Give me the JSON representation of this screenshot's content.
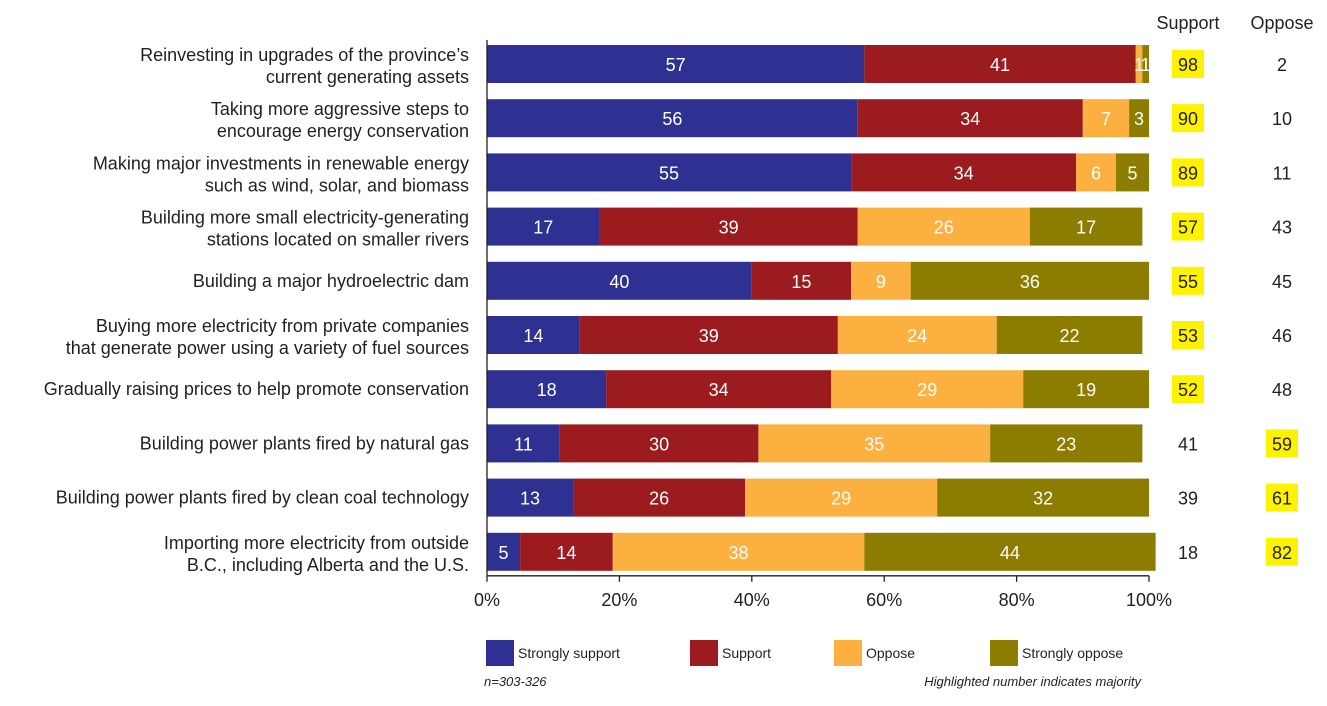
{
  "chart_data": {
    "type": "bar",
    "orientation": "horizontal",
    "stacked": true,
    "categories": [
      [
        "Reinvesting in upgrades of the province’s",
        "current generating assets"
      ],
      [
        "Taking more aggressive steps to",
        "encourage energy conservation"
      ],
      [
        "Making major investments in renewable energy",
        "such as wind, solar, and biomass"
      ],
      [
        "Building more small electricity-generating",
        "stations located on smaller rivers"
      ],
      [
        "Building a major hydroelectric dam"
      ],
      [
        "Buying more electricity from private companies",
        "that generate power using a variety of fuel sources"
      ],
      [
        "Gradually raising prices to help promote conservation"
      ],
      [
        "Building power plants fired by natural gas"
      ],
      [
        "Building power plants fired by clean coal technology"
      ],
      [
        "Importing more electricity from outside",
        "B.C., including Alberta and the U.S."
      ]
    ],
    "series": [
      {
        "name": "Strongly support",
        "color": "#2e3192",
        "values": [
          57,
          56,
          55,
          17,
          40,
          14,
          18,
          11,
          13,
          5
        ]
      },
      {
        "name": "Support",
        "color": "#9b1b1f",
        "values": [
          41,
          34,
          34,
          39,
          15,
          39,
          34,
          30,
          26,
          14
        ]
      },
      {
        "name": "Oppose",
        "color": "#fbb040",
        "values": [
          1,
          7,
          6,
          26,
          9,
          24,
          29,
          35,
          29,
          38
        ]
      },
      {
        "name": "Strongly oppose",
        "color": "#8c7d00",
        "values": [
          1,
          3,
          5,
          17,
          36,
          22,
          19,
          23,
          32,
          44
        ]
      }
    ],
    "segment_labels": [
      [
        "57",
        "41",
        "1",
        "1"
      ],
      [
        "56",
        "34",
        "7",
        "3"
      ],
      [
        "55",
        "34",
        "6",
        "5"
      ],
      [
        "17",
        "39",
        "26",
        "17"
      ],
      [
        "40",
        "15",
        "9",
        "36"
      ],
      [
        "14",
        "39",
        "24",
        "22"
      ],
      [
        "18",
        "34",
        "29",
        "19"
      ],
      [
        "11",
        "30",
        "35",
        "23"
      ],
      [
        "13",
        "26",
        "29",
        "32"
      ],
      [
        "5",
        "14",
        "38",
        "44"
      ]
    ],
    "summary_columns": [
      {
        "label": "Support",
        "values": [
          98,
          90,
          89,
          57,
          55,
          53,
          52,
          41,
          39,
          18
        ],
        "highlight": [
          true,
          true,
          true,
          true,
          true,
          true,
          true,
          false,
          false,
          false
        ]
      },
      {
        "label": "Oppose",
        "values": [
          2,
          10,
          11,
          43,
          45,
          46,
          48,
          59,
          61,
          82
        ],
        "highlight": [
          false,
          false,
          false,
          false,
          false,
          false,
          false,
          true,
          true,
          true
        ]
      }
    ],
    "highlight_color": "#fff200",
    "xlim": [
      0,
      100
    ],
    "xticks": [
      "0%",
      "20%",
      "40%",
      "60%",
      "80%",
      "100%"
    ],
    "legend_position": "bottom",
    "grid": false
  },
  "notes": {
    "sample": "n=303-326",
    "highlight": "Highlighted number indicates majority"
  }
}
